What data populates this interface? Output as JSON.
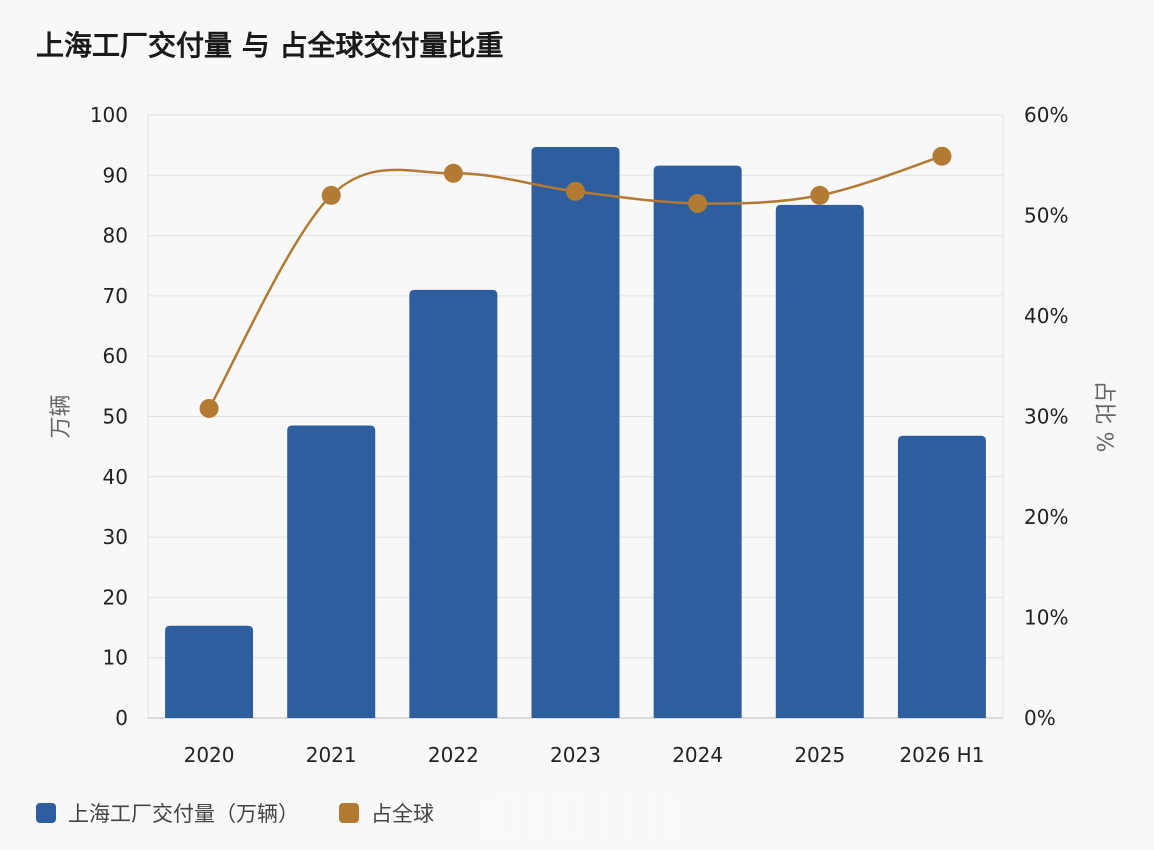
{
  "chart_data": {
    "type": "bar",
    "title": "上海工厂交付量 与 占全球交付量比重",
    "categories": [
      "2020",
      "2021",
      "2022",
      "2023",
      "2024",
      "2025",
      "2026 H1"
    ],
    "series": [
      {
        "name": "上海工厂交付量（万辆）",
        "type": "bar",
        "axis": "left",
        "color": "#2e5e9e",
        "values": [
          15.3,
          48.5,
          71.0,
          94.7,
          91.6,
          85.1,
          46.8
        ]
      },
      {
        "name": "占全球",
        "type": "line",
        "axis": "right",
        "color": "#b37a34",
        "values": [
          30.8,
          52.0,
          54.2,
          52.4,
          51.2,
          52.0,
          55.9
        ]
      }
    ],
    "ylabel": "万辆",
    "y2label": "占比 %",
    "ylim": [
      0,
      100
    ],
    "y2lim": [
      0,
      60
    ],
    "yticks": [
      "0",
      "10",
      "20",
      "30",
      "40",
      "50",
      "60",
      "70",
      "80",
      "90",
      "100"
    ],
    "y2ticks": [
      "0%",
      "10%",
      "20%",
      "30%",
      "40%",
      "50%",
      "60%"
    ],
    "grid": true,
    "legend": "bottom-left"
  },
  "legend": {
    "item1": "上海工厂交付量（万辆）",
    "item2": "占全球"
  }
}
